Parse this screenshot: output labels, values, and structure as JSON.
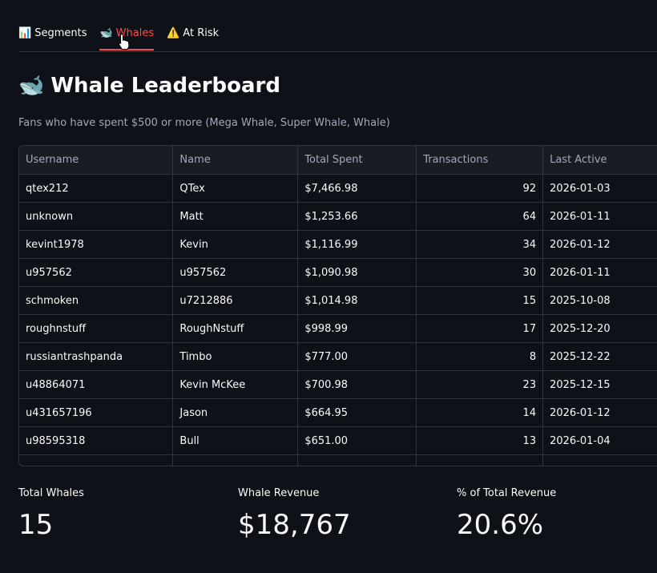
{
  "tabs": [
    {
      "emoji": "📊",
      "label": "Segments"
    },
    {
      "emoji": "🐋",
      "label": "Whales"
    },
    {
      "emoji": "⚠️",
      "label": "At Risk"
    }
  ],
  "page": {
    "emoji": "🐋",
    "title": "Whale Leaderboard",
    "subtitle": "Fans who have spent $500 or more (Mega Whale, Super Whale, Whale)"
  },
  "table": {
    "columns": [
      "Username",
      "Name",
      "Total Spent",
      "Transactions",
      "Last Active"
    ],
    "rows": [
      [
        "qtex212",
        "QTex",
        "$7,466.98",
        "92",
        "2026-01-03"
      ],
      [
        "unknown",
        "Matt",
        "$1,253.66",
        "64",
        "2026-01-11"
      ],
      [
        "kevint1978",
        "Kevin",
        "$1,116.99",
        "34",
        "2026-01-12"
      ],
      [
        "u957562",
        "u957562",
        "$1,090.98",
        "30",
        "2026-01-11"
      ],
      [
        "schmoken",
        "u7212886",
        "$1,014.98",
        "15",
        "2025-10-08"
      ],
      [
        "roughnstuff",
        "RoughNstuff",
        "$998.99",
        "17",
        "2025-12-20"
      ],
      [
        "russiantrashpanda",
        "Timbo",
        "$777.00",
        "8",
        "2025-12-22"
      ],
      [
        "u48864071",
        "Kevin McKee",
        "$700.98",
        "23",
        "2025-12-15"
      ],
      [
        "u431657196",
        "Jason",
        "$664.95",
        "14",
        "2026-01-12"
      ],
      [
        "u98595318",
        "Bull",
        "$651.00",
        "13",
        "2026-01-04"
      ],
      [
        "",
        "",
        "",
        "",
        ""
      ]
    ]
  },
  "metrics": [
    {
      "label": "Total Whales",
      "value": "15"
    },
    {
      "label": "Whale Revenue",
      "value": "$18,767"
    },
    {
      "label": "% of Total Revenue",
      "value": "20.6%"
    }
  ]
}
